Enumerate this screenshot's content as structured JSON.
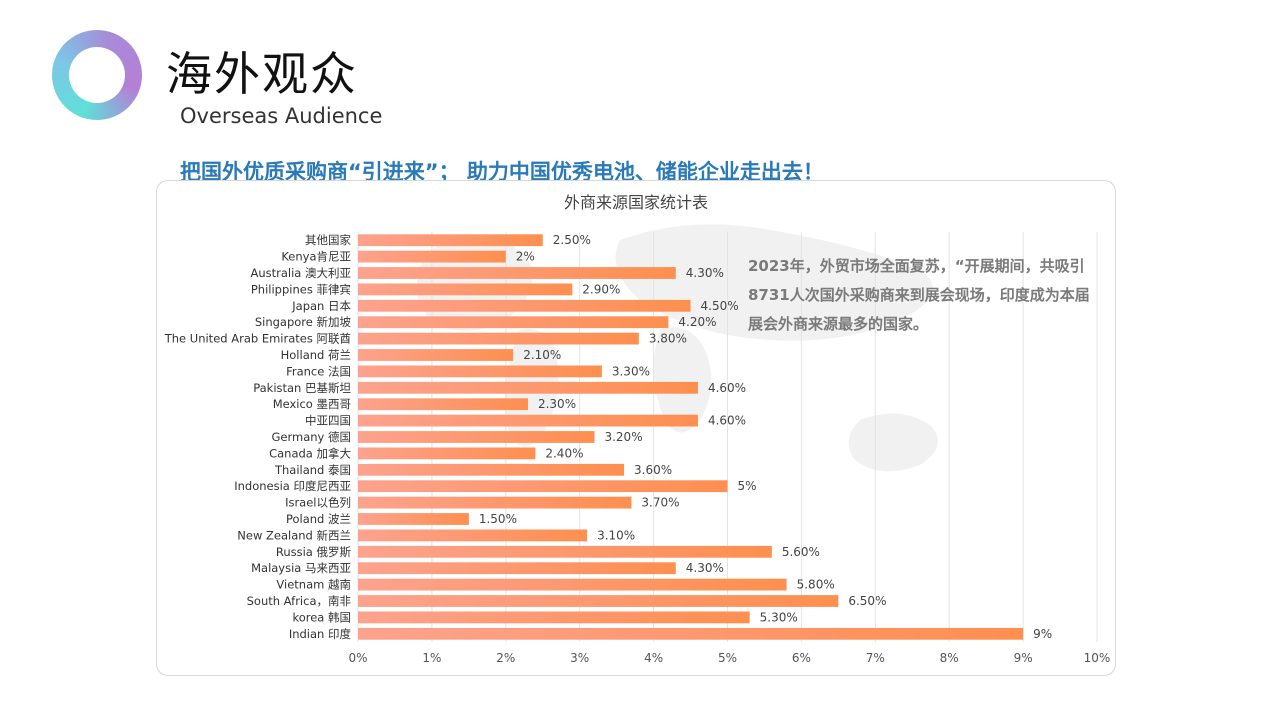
{
  "header": {
    "title": "海外观众",
    "subtitle": "Overseas Audience",
    "slogan": "把国外优质采购商“引进来”； 助力中国优秀电池、储能企业走出去！"
  },
  "annotation": "2023年，外贸市场全面复苏，“开展期间，共吸引8731人次国外采购商来到展会现场，印度成为本届展会外商来源最多的国家。",
  "colors": {
    "bar_start": "#fda28e",
    "bar_end": "#fd8f4f",
    "slogan": "#2a7ab8"
  },
  "chart_data": {
    "type": "bar",
    "orientation": "horizontal",
    "title": "外商来源国家统计表",
    "categories": [
      "其他国家",
      "Kenya肯尼亚",
      "Australia 澳大利亚",
      "Philippines 菲律宾",
      "Japan 日本",
      "Singapore 新加坡",
      "The United Arab Emirates 阿联酋",
      "Holland  荷兰",
      "France   法国",
      "Pakistan 巴基斯坦",
      "Mexico   墨西哥",
      "中亚四国",
      "Germany  德国",
      "Canada  加拿大",
      "Thailand 泰国",
      "Indonesia 印度尼西亚",
      "Israel以色列",
      "Poland 波兰",
      "New Zealand 新西兰",
      "Russia 俄罗斯",
      "Malaysia 马来西亚",
      "Vietnam 越南",
      "South Africa，南非",
      "korea  韩国",
      "Indian 印度"
    ],
    "values": [
      2.5,
      2,
      4.3,
      2.9,
      4.5,
      4.2,
      3.8,
      2.1,
      3.3,
      4.6,
      2.3,
      4.6,
      3.2,
      2.4,
      3.6,
      5,
      3.7,
      1.5,
      3.1,
      5.6,
      4.3,
      5.8,
      6.5,
      5.3,
      9
    ],
    "data_labels": [
      "2.50%",
      "2%",
      "4.30%",
      "2.90%",
      "4.50%",
      "4.20%",
      "3.80%",
      "2.10%",
      "3.30%",
      "4.60%",
      "2.30%",
      "4.60%",
      "3.20%",
      "2.40%",
      "3.60%",
      "5%",
      "3.70%",
      "1.50%",
      "3.10%",
      "5.60%",
      "4.30%",
      "5.80%",
      "6.50%",
      "5.30%",
      "9%"
    ],
    "xlim": [
      0,
      10
    ],
    "xticks": [
      "0%",
      "1%",
      "2%",
      "3%",
      "4%",
      "5%",
      "6%",
      "7%",
      "8%",
      "9%",
      "10%"
    ],
    "grid": "vertical",
    "legend": "none"
  }
}
